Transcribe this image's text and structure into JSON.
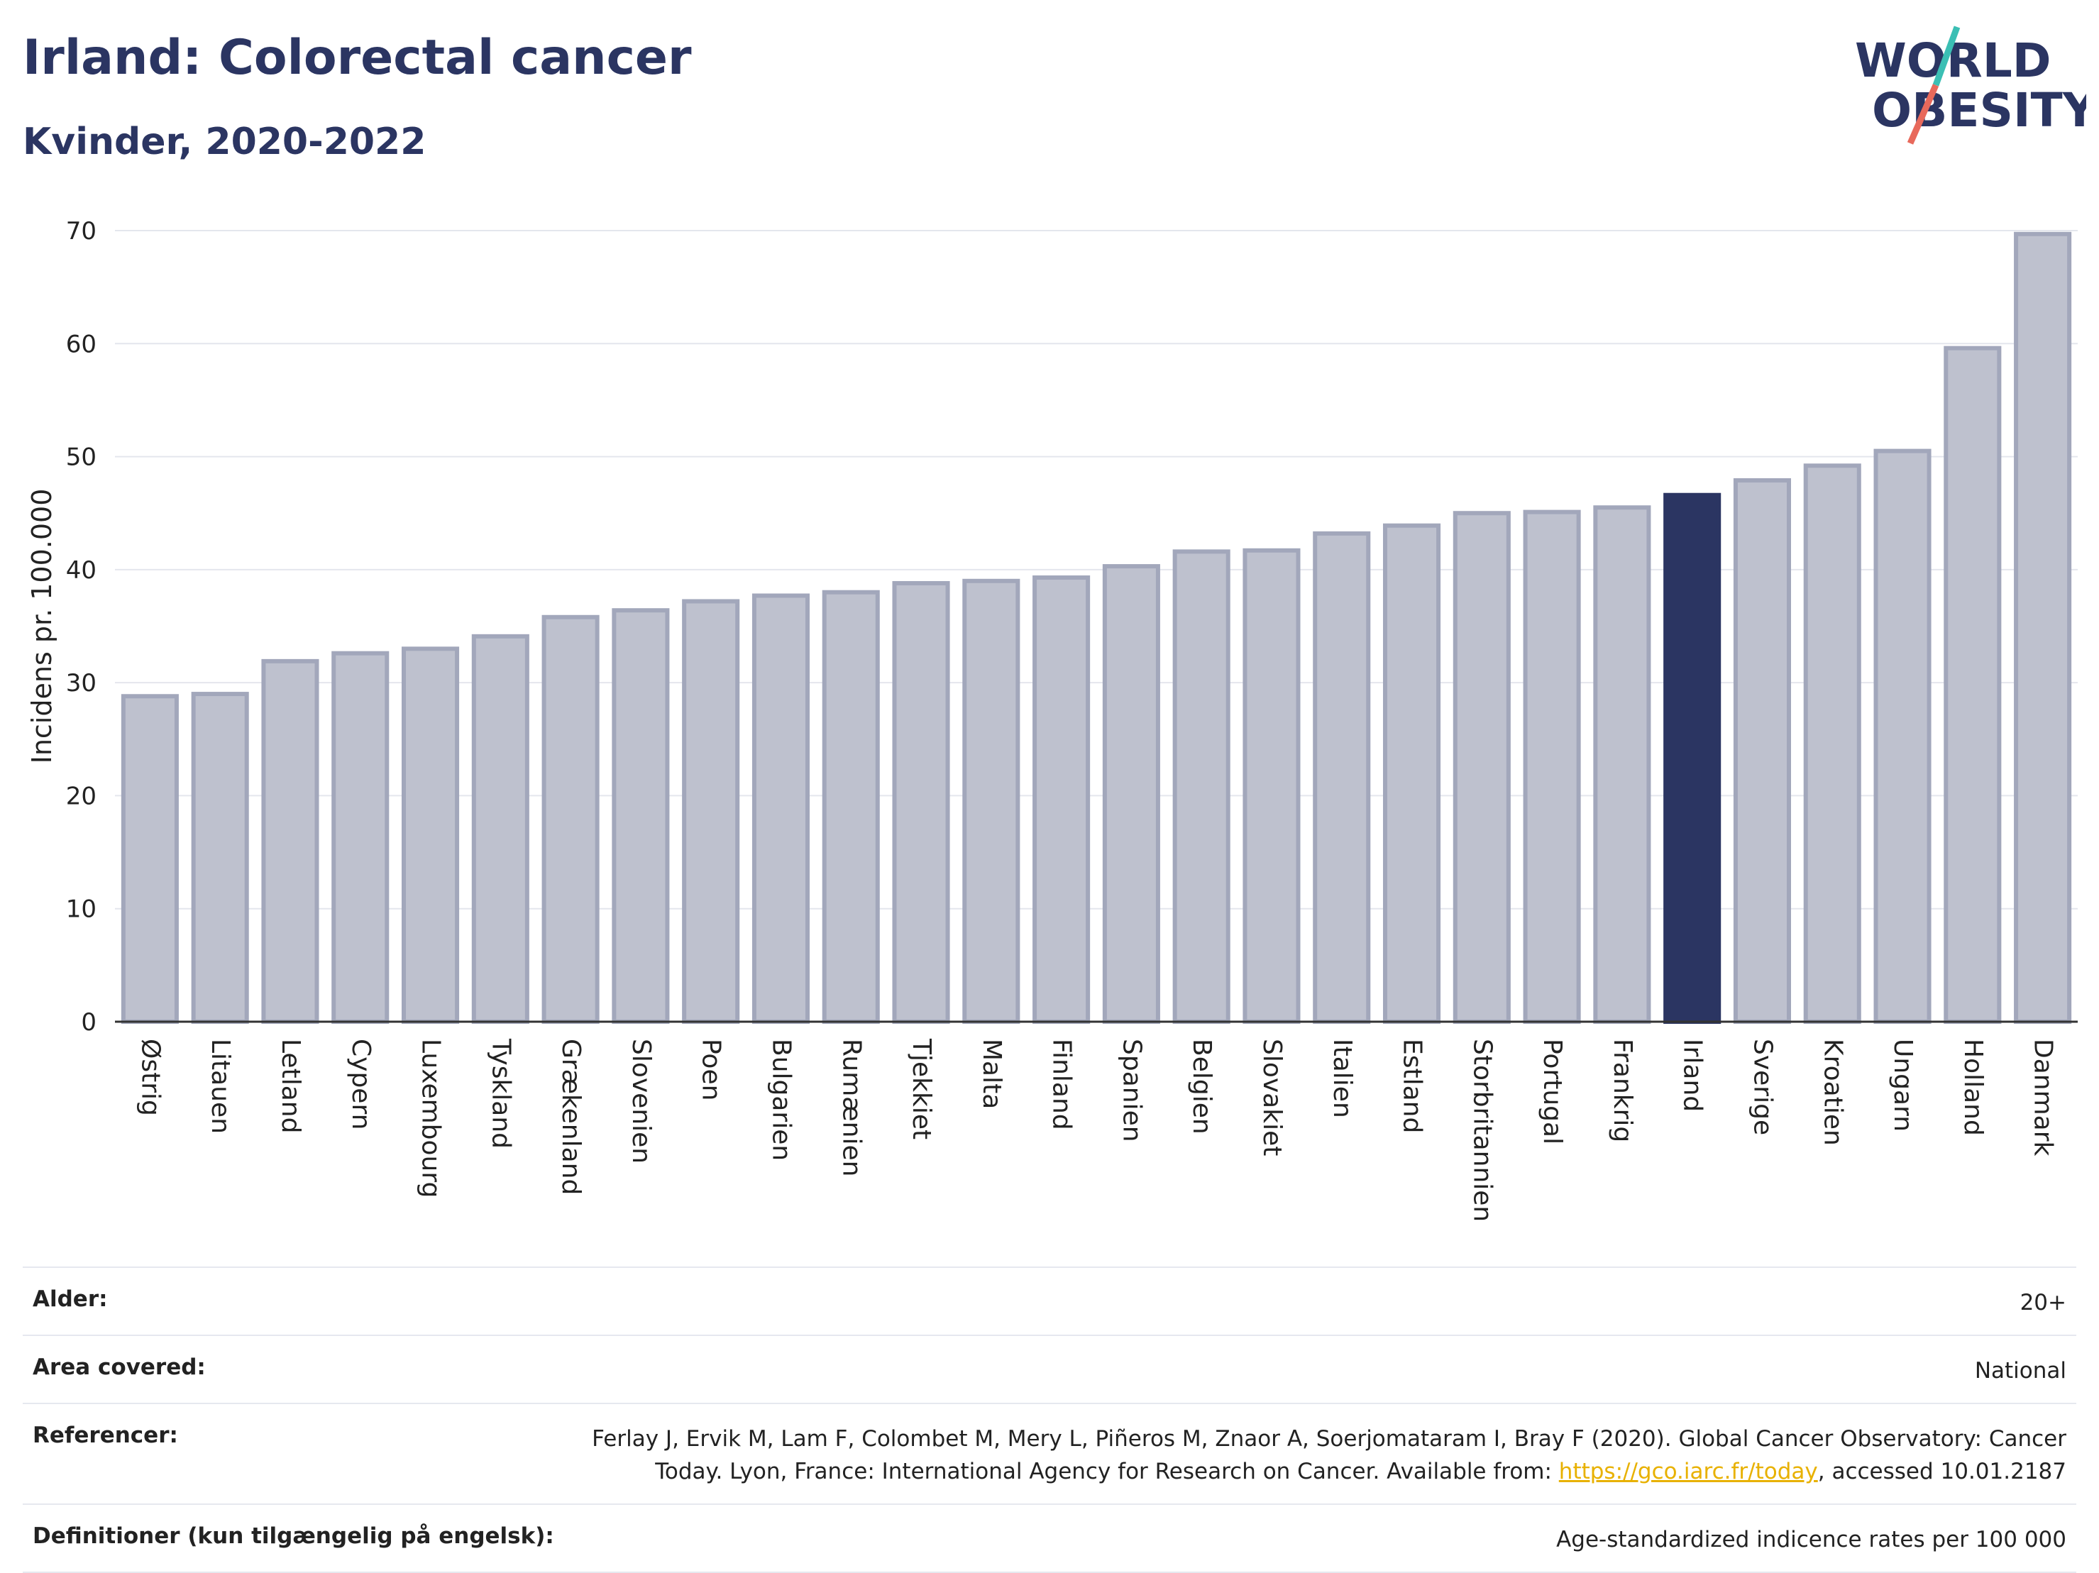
{
  "header": {
    "title": "Irland: Colorectal cancer",
    "subtitle": "Kvinder, 2020-2022"
  },
  "logo": {
    "line1": "WORLD",
    "line2": "OBESITY",
    "slash_color_top": "#3bbfb4",
    "slash_color_bottom": "#e8695b",
    "text_color": "#2b3562"
  },
  "chart_data": {
    "type": "bar",
    "ylabel": "Incidens pr. 100.000",
    "ylim": [
      0,
      70
    ],
    "yticks": [
      0,
      10,
      20,
      30,
      40,
      50,
      60,
      70
    ],
    "grid": true,
    "highlight": "Irland",
    "colors": {
      "bar": "#bec1ce",
      "bar_border": "#a2a7bb",
      "highlight": "#2b3562"
    },
    "categories": [
      "Østrig",
      "Litauen",
      "Letland",
      "Cypern",
      "Luxembourg",
      "Tyskland",
      "Grækenland",
      "Slovenien",
      "Poen",
      "Bulgarien",
      "Rumænien",
      "Tjekkiet",
      "Malta",
      "Finland",
      "Spanien",
      "Belgien",
      "Slovakiet",
      "Italien",
      "Estland",
      "Storbritannien",
      "Portugal",
      "Frankrig",
      "Irland",
      "Sverige",
      "Kroatien",
      "Ungarn",
      "Holland",
      "Danmark"
    ],
    "values": [
      28.8,
      29.0,
      31.9,
      32.6,
      33.0,
      34.1,
      35.8,
      36.4,
      37.2,
      37.7,
      38.0,
      38.8,
      39.0,
      39.3,
      40.3,
      41.6,
      41.7,
      43.2,
      43.9,
      45.0,
      45.1,
      45.5,
      46.6,
      47.9,
      49.2,
      50.5,
      59.6,
      69.7
    ]
  },
  "info": {
    "age_label": "Alder:",
    "age_value": "20+",
    "area_label": "Area covered:",
    "area_value": "National",
    "ref_label": "Referencer:",
    "ref_text1": "Ferlay J, Ervik M, Lam F, Colombet M, Mery L, Piñeros M, Znaor A, Soerjomataram I, Bray F (2020). Global Cancer Observatory: Cancer",
    "ref_text2": "Today. Lyon, France: International Agency for Research on Cancer. Available from: ",
    "ref_link": "https://gco.iarc.fr/today",
    "ref_text3": ", accessed 10.01.2187",
    "def_label": "Definitioner (kun tilgængelig på engelsk):",
    "def_value": "Age-standardized indicence rates per 100 000"
  }
}
